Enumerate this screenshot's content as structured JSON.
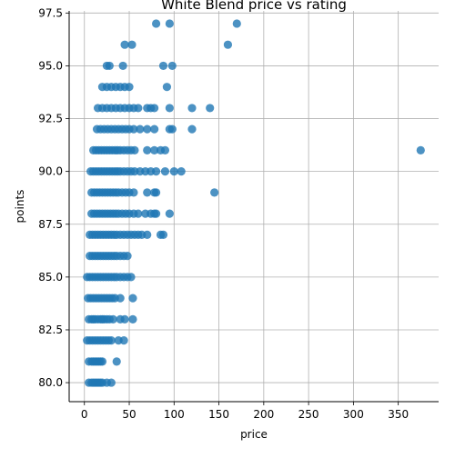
{
  "chart_data": {
    "type": "scatter",
    "title": "White Blend price vs rating",
    "xlabel": "price",
    "ylabel": "points",
    "xlim": [
      -17,
      395
    ],
    "ylim": [
      79.1,
      97.6
    ],
    "xticks": [
      0,
      50,
      100,
      150,
      200,
      250,
      300,
      350
    ],
    "xtick_labels": [
      "0",
      "50",
      "100",
      "150",
      "200",
      "250",
      "300",
      "350"
    ],
    "yticks": [
      80.0,
      82.5,
      85.0,
      87.5,
      90.0,
      92.5,
      95.0,
      97.5
    ],
    "ytick_labels": [
      "80.0",
      "82.5",
      "85.0",
      "87.5",
      "90.0",
      "92.5",
      "95.0",
      "97.5"
    ],
    "grid": true,
    "marker_color": "#1f77b4",
    "series": [
      {
        "points": [
          [
            5,
            80
          ],
          [
            8,
            80
          ],
          [
            10,
            80
          ],
          [
            12,
            80
          ],
          [
            14,
            80
          ],
          [
            16,
            80
          ],
          [
            18,
            80
          ],
          [
            20,
            80
          ],
          [
            25,
            80
          ],
          [
            30,
            80
          ],
          [
            5,
            81
          ],
          [
            8,
            81
          ],
          [
            10,
            81
          ],
          [
            12,
            81
          ],
          [
            14,
            81
          ],
          [
            16,
            81
          ],
          [
            18,
            81
          ],
          [
            20,
            81
          ],
          [
            36,
            81
          ],
          [
            3,
            82
          ],
          [
            6,
            82
          ],
          [
            9,
            82
          ],
          [
            12,
            82
          ],
          [
            15,
            82
          ],
          [
            18,
            82
          ],
          [
            21,
            82
          ],
          [
            24,
            82
          ],
          [
            27,
            82
          ],
          [
            30,
            82
          ],
          [
            38,
            82
          ],
          [
            44,
            82
          ],
          [
            5,
            83
          ],
          [
            8,
            83
          ],
          [
            10,
            83
          ],
          [
            12,
            83
          ],
          [
            15,
            83
          ],
          [
            18,
            83
          ],
          [
            20,
            83
          ],
          [
            22,
            83
          ],
          [
            25,
            83
          ],
          [
            28,
            83
          ],
          [
            32,
            83
          ],
          [
            40,
            83
          ],
          [
            45,
            83
          ],
          [
            54,
            83
          ],
          [
            4,
            84
          ],
          [
            7,
            84
          ],
          [
            10,
            84
          ],
          [
            13,
            84
          ],
          [
            16,
            84
          ],
          [
            19,
            84
          ],
          [
            22,
            84
          ],
          [
            25,
            84
          ],
          [
            28,
            84
          ],
          [
            31,
            84
          ],
          [
            34,
            84
          ],
          [
            40,
            84
          ],
          [
            54,
            84
          ],
          [
            3,
            85
          ],
          [
            6,
            85
          ],
          [
            9,
            85
          ],
          [
            12,
            85
          ],
          [
            15,
            85
          ],
          [
            18,
            85
          ],
          [
            21,
            85
          ],
          [
            24,
            85
          ],
          [
            27,
            85
          ],
          [
            30,
            85
          ],
          [
            33,
            85
          ],
          [
            36,
            85
          ],
          [
            40,
            85
          ],
          [
            44,
            85
          ],
          [
            48,
            85
          ],
          [
            52,
            85
          ],
          [
            6,
            86
          ],
          [
            9,
            86
          ],
          [
            12,
            86
          ],
          [
            15,
            86
          ],
          [
            18,
            86
          ],
          [
            21,
            86
          ],
          [
            24,
            86
          ],
          [
            27,
            86
          ],
          [
            30,
            86
          ],
          [
            33,
            86
          ],
          [
            36,
            86
          ],
          [
            40,
            86
          ],
          [
            44,
            86
          ],
          [
            48,
            86
          ],
          [
            6,
            87
          ],
          [
            9,
            87
          ],
          [
            12,
            87
          ],
          [
            15,
            87
          ],
          [
            18,
            87
          ],
          [
            21,
            87
          ],
          [
            24,
            87
          ],
          [
            27,
            87
          ],
          [
            30,
            87
          ],
          [
            33,
            87
          ],
          [
            36,
            87
          ],
          [
            40,
            87
          ],
          [
            44,
            87
          ],
          [
            48,
            87
          ],
          [
            52,
            87
          ],
          [
            56,
            87
          ],
          [
            60,
            87
          ],
          [
            64,
            87
          ],
          [
            70,
            87
          ],
          [
            85,
            87
          ],
          [
            88,
            87
          ],
          [
            8,
            88
          ],
          [
            11,
            88
          ],
          [
            14,
            88
          ],
          [
            17,
            88
          ],
          [
            20,
            88
          ],
          [
            23,
            88
          ],
          [
            26,
            88
          ],
          [
            29,
            88
          ],
          [
            32,
            88
          ],
          [
            35,
            88
          ],
          [
            38,
            88
          ],
          [
            42,
            88
          ],
          [
            46,
            88
          ],
          [
            50,
            88
          ],
          [
            55,
            88
          ],
          [
            60,
            88
          ],
          [
            68,
            88
          ],
          [
            74,
            88
          ],
          [
            78,
            88
          ],
          [
            80,
            88
          ],
          [
            95,
            88
          ],
          [
            8,
            89
          ],
          [
            11,
            89
          ],
          [
            14,
            89
          ],
          [
            17,
            89
          ],
          [
            20,
            89
          ],
          [
            23,
            89
          ],
          [
            26,
            89
          ],
          [
            29,
            89
          ],
          [
            32,
            89
          ],
          [
            35,
            89
          ],
          [
            38,
            89
          ],
          [
            42,
            89
          ],
          [
            46,
            89
          ],
          [
            50,
            89
          ],
          [
            55,
            89
          ],
          [
            70,
            89
          ],
          [
            78,
            89
          ],
          [
            80,
            89
          ],
          [
            145,
            89
          ],
          [
            7,
            90
          ],
          [
            10,
            90
          ],
          [
            13,
            90
          ],
          [
            16,
            90
          ],
          [
            19,
            90
          ],
          [
            22,
            90
          ],
          [
            25,
            90
          ],
          [
            28,
            90
          ],
          [
            31,
            90
          ],
          [
            34,
            90
          ],
          [
            37,
            90
          ],
          [
            40,
            90
          ],
          [
            44,
            90
          ],
          [
            48,
            90
          ],
          [
            52,
            90
          ],
          [
            56,
            90
          ],
          [
            62,
            90
          ],
          [
            68,
            90
          ],
          [
            74,
            90
          ],
          [
            80,
            90
          ],
          [
            90,
            90
          ],
          [
            100,
            90
          ],
          [
            108,
            90
          ],
          [
            10,
            91
          ],
          [
            13,
            91
          ],
          [
            16,
            91
          ],
          [
            19,
            91
          ],
          [
            22,
            91
          ],
          [
            25,
            91
          ],
          [
            28,
            91
          ],
          [
            31,
            91
          ],
          [
            34,
            91
          ],
          [
            37,
            91
          ],
          [
            40,
            91
          ],
          [
            44,
            91
          ],
          [
            48,
            91
          ],
          [
            52,
            91
          ],
          [
            56,
            91
          ],
          [
            70,
            91
          ],
          [
            78,
            91
          ],
          [
            85,
            91
          ],
          [
            90,
            91
          ],
          [
            375,
            91
          ],
          [
            14,
            92
          ],
          [
            18,
            92
          ],
          [
            22,
            92
          ],
          [
            26,
            92
          ],
          [
            30,
            92
          ],
          [
            34,
            92
          ],
          [
            38,
            92
          ],
          [
            42,
            92
          ],
          [
            46,
            92
          ],
          [
            50,
            92
          ],
          [
            55,
            92
          ],
          [
            62,
            92
          ],
          [
            70,
            92
          ],
          [
            78,
            92
          ],
          [
            95,
            92
          ],
          [
            98,
            92
          ],
          [
            120,
            92
          ],
          [
            15,
            93
          ],
          [
            20,
            93
          ],
          [
            25,
            93
          ],
          [
            30,
            93
          ],
          [
            35,
            93
          ],
          [
            40,
            93
          ],
          [
            45,
            93
          ],
          [
            50,
            93
          ],
          [
            55,
            93
          ],
          [
            60,
            93
          ],
          [
            70,
            93
          ],
          [
            74,
            93
          ],
          [
            78,
            93
          ],
          [
            95,
            93
          ],
          [
            120,
            93
          ],
          [
            140,
            93
          ],
          [
            20,
            94
          ],
          [
            25,
            94
          ],
          [
            30,
            94
          ],
          [
            35,
            94
          ],
          [
            40,
            94
          ],
          [
            45,
            94
          ],
          [
            50,
            94
          ],
          [
            92,
            94
          ],
          [
            25,
            95
          ],
          [
            28,
            95
          ],
          [
            43,
            95
          ],
          [
            88,
            95
          ],
          [
            98,
            95
          ],
          [
            45,
            96
          ],
          [
            53,
            96
          ],
          [
            160,
            96
          ],
          [
            80,
            97
          ],
          [
            95,
            97
          ],
          [
            170,
            97
          ]
        ]
      }
    ]
  }
}
